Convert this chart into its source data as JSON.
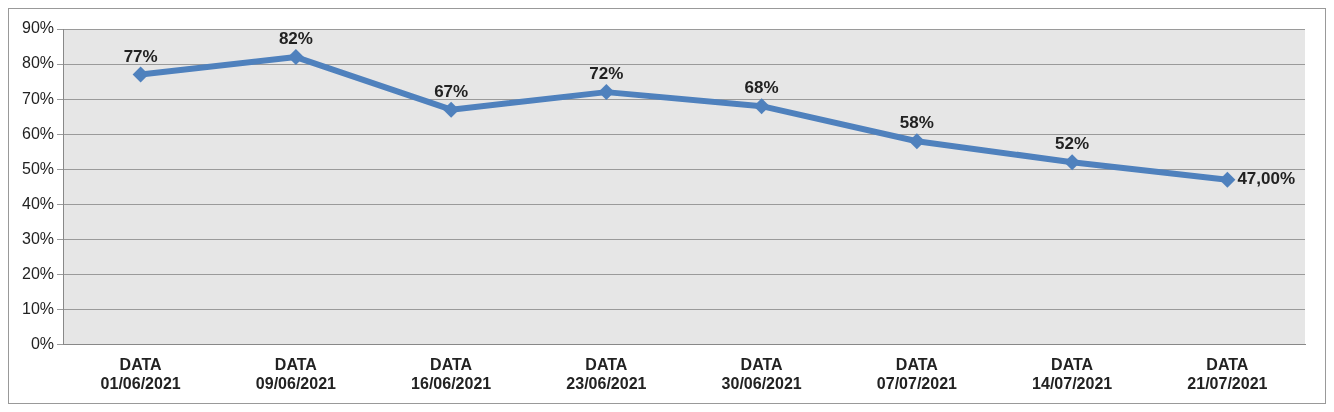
{
  "chart_data": {
    "type": "line",
    "categories": [
      "DATA 01/06/2021",
      "DATA 09/06/2021",
      "DATA 16/06/2021",
      "DATA 23/06/2021",
      "DATA 30/06/2021",
      "DATA 07/07/2021",
      "DATA 14/07/2021",
      "DATA 21/07/2021"
    ],
    "series": [
      {
        "color": "#4f81bd",
        "values": [
          77,
          82,
          67,
          72,
          68,
          58,
          52,
          47
        ],
        "value_labels": [
          "77%",
          "82%",
          "67%",
          "72%",
          "68%",
          "58%",
          "52%",
          "47,00%"
        ]
      }
    ],
    "ylim": [
      0,
      90
    ],
    "yticks": [
      {
        "value": 0,
        "label": "0%"
      },
      {
        "value": 10,
        "label": "10%"
      },
      {
        "value": 20,
        "label": "20%"
      },
      {
        "value": 30,
        "label": "30%"
      },
      {
        "value": 40,
        "label": "40%"
      },
      {
        "value": 50,
        "label": "50%"
      },
      {
        "value": 60,
        "label": "60%"
      },
      {
        "value": 70,
        "label": "70%"
      },
      {
        "value": 80,
        "label": "80%"
      },
      {
        "value": 90,
        "label": "90%"
      }
    ],
    "grid": "y",
    "legend": false,
    "marker": "diamond",
    "line_style": "solid"
  }
}
